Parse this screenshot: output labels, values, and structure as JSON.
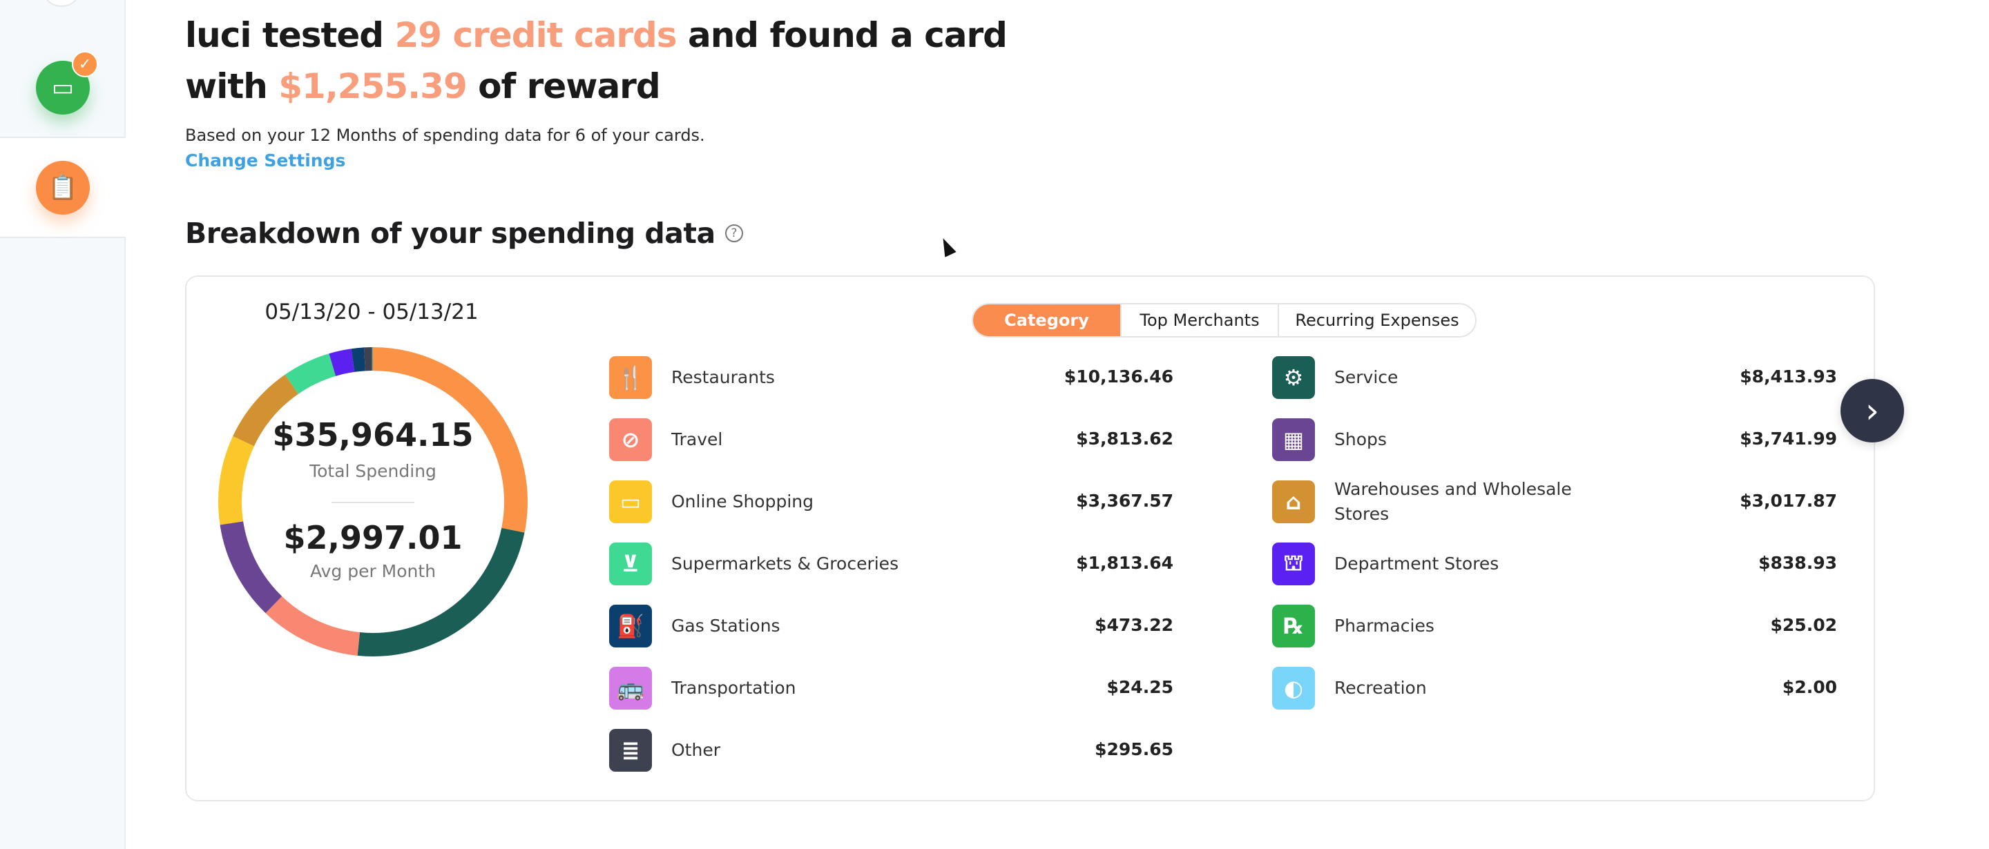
{
  "headline": {
    "prefix": "luci tested ",
    "highlight1": "29 credit cards",
    "middle": " and found a card",
    "line2_prefix": "with ",
    "highlight2": "$1,255.39",
    "suffix": " of reward"
  },
  "subtitle": "Based on your 12 Months of spending data for 6 of your cards.",
  "change_settings": "Change Settings",
  "section_title": "Breakdown of your spending data",
  "help_icon": "?",
  "date_range": "05/13/20 - 05/13/21",
  "totals": {
    "total": "$35,964.15",
    "total_label": "Total Spending",
    "avg": "$2,997.01",
    "avg_label": "Avg per Month"
  },
  "tabs": [
    {
      "label": "Category",
      "active": true
    },
    {
      "label": "Top Merchants",
      "active": false
    },
    {
      "label": "Recurring Expenses",
      "active": false
    }
  ],
  "categories_left": [
    {
      "name": "Restaurants",
      "amount": "$10,136.46",
      "icon": "fork-knife-icon",
      "glyph": "🍴",
      "color": "#fb9346"
    },
    {
      "name": "Travel",
      "amount": "$3,813.62",
      "icon": "compass-icon",
      "glyph": "⊘",
      "color": "#f98873"
    },
    {
      "name": "Online Shopping",
      "amount": "$3,367.57",
      "icon": "laptop-bag-icon",
      "glyph": "▭",
      "color": "#fbc72a"
    },
    {
      "name": "Supermarkets & Groceries",
      "amount": "$1,813.64",
      "icon": "basket-icon",
      "glyph": "⊻",
      "color": "#3fd994"
    },
    {
      "name": "Gas Stations",
      "amount": "$473.22",
      "icon": "gas-pump-icon",
      "glyph": "⛽",
      "color": "#0b3f6e"
    },
    {
      "name": "Transportation",
      "amount": "$24.25",
      "icon": "bus-car-icon",
      "glyph": "🚌",
      "color": "#d57be8"
    },
    {
      "name": "Other",
      "amount": "$295.65",
      "icon": "receipt-icon",
      "glyph": "≣",
      "color": "#3d4150"
    }
  ],
  "categories_right": [
    {
      "name": "Service",
      "amount": "$8,413.93",
      "icon": "gear-icon",
      "glyph": "⚙",
      "color": "#1b5e55"
    },
    {
      "name": "Shops",
      "amount": "$3,741.99",
      "icon": "storefront-icon",
      "glyph": "▦",
      "color": "#6a4593"
    },
    {
      "name": "Warehouses and Wholesale Stores",
      "amount": "$3,017.87",
      "icon": "warehouse-icon",
      "glyph": "⌂",
      "color": "#d39232"
    },
    {
      "name": "Department Stores",
      "amount": "$838.93",
      "icon": "shopping-bag-icon",
      "glyph": "⛫",
      "color": "#5b21f0"
    },
    {
      "name": "Pharmacies",
      "amount": "$25.02",
      "icon": "rx-icon",
      "glyph": "℞",
      "color": "#2db14a"
    },
    {
      "name": "Recreation",
      "amount": "$2.00",
      "icon": "beach-ball-icon",
      "glyph": "◐",
      "color": "#79d5fa"
    }
  ],
  "chart_data": {
    "type": "pie",
    "variant": "donut",
    "categories": [
      "Restaurants",
      "Service",
      "Travel",
      "Shops",
      "Online Shopping",
      "Warehouses and Wholesale Stores",
      "Supermarkets & Groceries",
      "Department Stores",
      "Gas Stations",
      "Other",
      "Pharmacies",
      "Transportation",
      "Recreation"
    ],
    "values": [
      10136.46,
      8413.93,
      3813.62,
      3741.99,
      3367.57,
      3017.87,
      1813.64,
      838.93,
      473.22,
      295.65,
      25.02,
      24.25,
      2.0
    ],
    "colors": [
      "#fb9346",
      "#1b5e55",
      "#f98873",
      "#6a4593",
      "#fbc72a",
      "#d39232",
      "#3fd994",
      "#5b21f0",
      "#0b3f6e",
      "#3d4150",
      "#2db14a",
      "#d57be8",
      "#79d5fa"
    ]
  },
  "next_icon": "›"
}
